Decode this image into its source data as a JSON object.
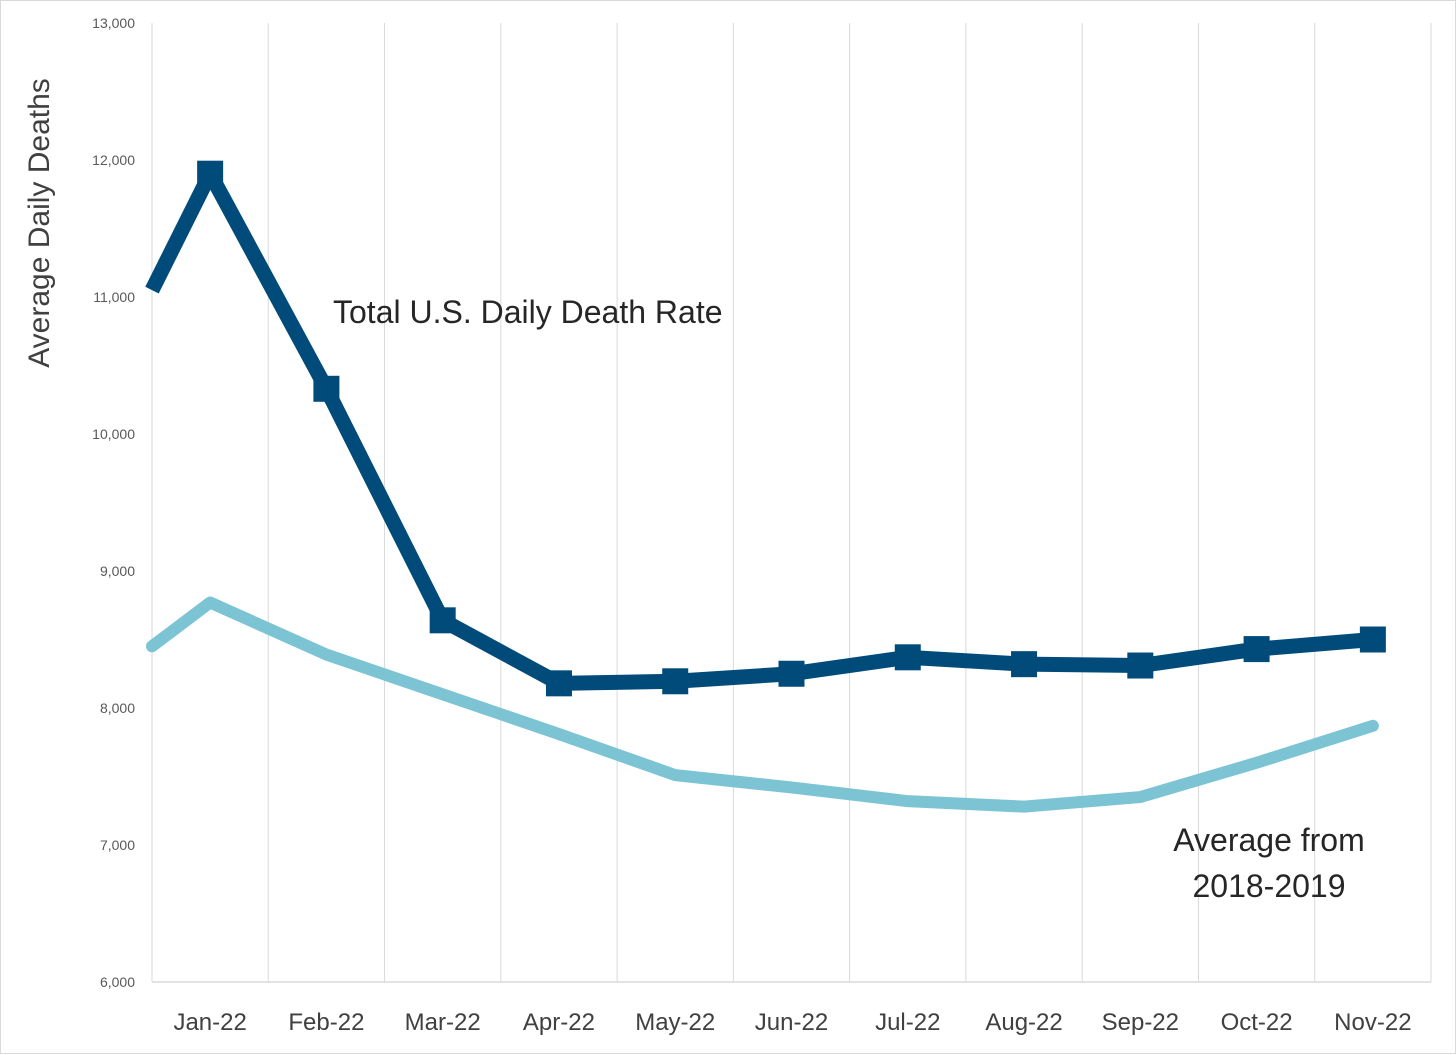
{
  "chart_data": {
    "type": "line",
    "title": "",
    "xlabel": "",
    "ylabel": "Average Daily Deaths",
    "ylim": [
      6000,
      13000
    ],
    "yticks": [
      "6,000",
      "7,000",
      "8,000",
      "9,000",
      "10,000",
      "11,000",
      "12,000",
      "13,000"
    ],
    "ytick_values": [
      6000,
      7000,
      8000,
      9000,
      10000,
      11000,
      12000,
      13000
    ],
    "categories": [
      "Jan-22",
      "Feb-22",
      "Mar-22",
      "Apr-22",
      "May-22",
      "Jun-22",
      "Jul-22",
      "Aug-22",
      "Sep-22",
      "Oct-22",
      "Nov-22"
    ],
    "grid": "vertical",
    "legend": "none",
    "series": [
      {
        "name": "Total U.S. Daily Death Rate",
        "color": "#004b7a",
        "marker": "square",
        "start_value": 11050,
        "values": [
          11900,
          10330,
          8640,
          8180,
          8195,
          8250,
          8370,
          8320,
          8310,
          8430,
          8500
        ]
      },
      {
        "name": "Average from 2018-2019",
        "color": "#7cc4d4",
        "marker": "none",
        "start_value": 8450,
        "values": [
          8770,
          8390,
          8100,
          7810,
          7510,
          7420,
          7320,
          7280,
          7350,
          7600,
          7870
        ]
      }
    ],
    "annotations": [
      {
        "text": "Total U.S. Daily Death Rate",
        "series": 0
      },
      {
        "text": "Average from",
        "series": 1
      },
      {
        "text": "2018-2019",
        "series": 1
      }
    ]
  }
}
